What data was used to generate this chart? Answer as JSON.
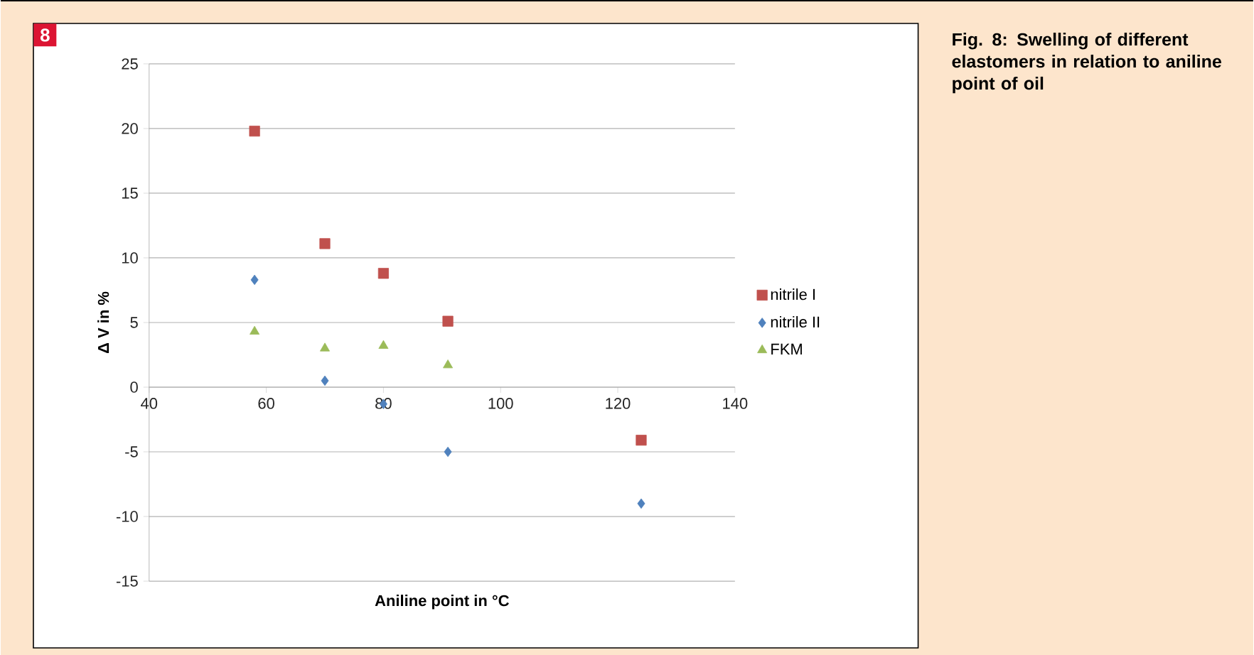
{
  "chart_data": {
    "type": "scatter",
    "title": "Fig. 8: Swelling of different elastomers in relation to aniline point of oil",
    "xlabel": "Aniline point in °C",
    "ylabel": "Δ V in %",
    "annotations": [
      "8"
    ],
    "xlim": [
      40,
      140
    ],
    "xticks": [
      40,
      60,
      80,
      100,
      120,
      140
    ],
    "ylim": [
      -15,
      25
    ],
    "yticks": [
      -15,
      -10,
      -5,
      0,
      5,
      10,
      15,
      20,
      25
    ],
    "grid": "y",
    "legend": "right",
    "series": [
      {
        "name": "nitrile I",
        "color": "#c0504d",
        "marker": "square",
        "x": [
          58,
          70,
          80,
          91,
          124
        ],
        "values": [
          19.8,
          11.1,
          8.8,
          5.1,
          -4.1
        ]
      },
      {
        "name": "nitrile II",
        "color": "#4f81bd",
        "marker": "diamond",
        "x": [
          58,
          70,
          80,
          91,
          124
        ],
        "values": [
          8.3,
          0.5,
          -1.3,
          -5.0,
          -9.0
        ]
      },
      {
        "name": "FKM",
        "color": "#9bbb59",
        "marker": "triangle",
        "x": [
          58,
          70,
          80,
          91
        ],
        "values": [
          4.3,
          3.0,
          3.2,
          1.7
        ]
      }
    ]
  }
}
